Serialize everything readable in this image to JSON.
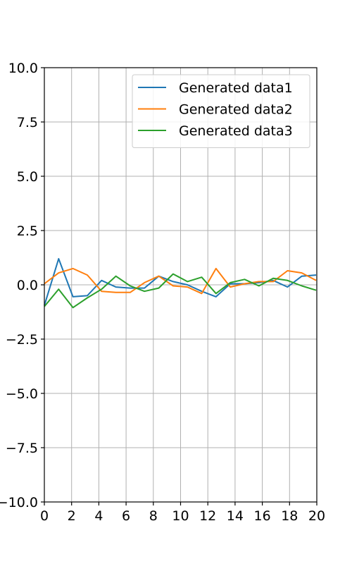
{
  "chart_data": {
    "type": "line",
    "title": "",
    "xlabel": "",
    "ylabel": "",
    "xlim": [
      0,
      20
    ],
    "ylim": [
      -10,
      10
    ],
    "x_ticks": [
      0,
      2,
      4,
      6,
      8,
      10,
      12,
      14,
      16,
      18,
      20
    ],
    "x_tick_labels": [
      "0",
      "2",
      "4",
      "6",
      "8",
      "10",
      "12",
      "14",
      "16",
      "18",
      "20"
    ],
    "y_ticks": [
      -10,
      -7.5,
      -5,
      -2.5,
      0,
      2.5,
      5,
      7.5,
      10
    ],
    "y_tick_labels": [
      "−10.0",
      "−7.5",
      "−5.0",
      "−2.5",
      "0.0",
      "2.5",
      "5.0",
      "7.5",
      "10.0"
    ],
    "grid": true,
    "legend_position": "top-right",
    "x": [
      0,
      1.05,
      2.1,
      3.15,
      4.2,
      5.25,
      6.3,
      7.35,
      8.4,
      9.45,
      10.5,
      11.55,
      12.6,
      13.65,
      14.7,
      15.75,
      16.8,
      17.85,
      18.9,
      19.95
    ],
    "series": [
      {
        "name": "Generated data1",
        "color": "#1f77b4",
        "values": [
          -0.95,
          1.2,
          -0.55,
          -0.5,
          0.2,
          -0.1,
          -0.15,
          -0.15,
          0.4,
          0.15,
          0.0,
          -0.3,
          -0.55,
          0.05,
          0.05,
          0.1,
          0.2,
          -0.1,
          0.4,
          0.45
        ]
      },
      {
        "name": "Generated data2",
        "color": "#ff7f0e",
        "values": [
          0.05,
          0.55,
          0.75,
          0.45,
          -0.3,
          -0.35,
          -0.35,
          0.1,
          0.4,
          -0.05,
          -0.1,
          -0.4,
          0.75,
          -0.1,
          0.05,
          0.15,
          0.15,
          0.65,
          0.55,
          0.2
        ]
      },
      {
        "name": "Generated data3",
        "color": "#2ca02c",
        "values": [
          -1.0,
          -0.2,
          -1.05,
          -0.6,
          -0.2,
          0.4,
          -0.05,
          -0.3,
          -0.15,
          0.5,
          0.15,
          0.35,
          -0.4,
          0.1,
          0.25,
          -0.05,
          0.3,
          0.2,
          -0.05,
          -0.25
        ]
      }
    ]
  }
}
